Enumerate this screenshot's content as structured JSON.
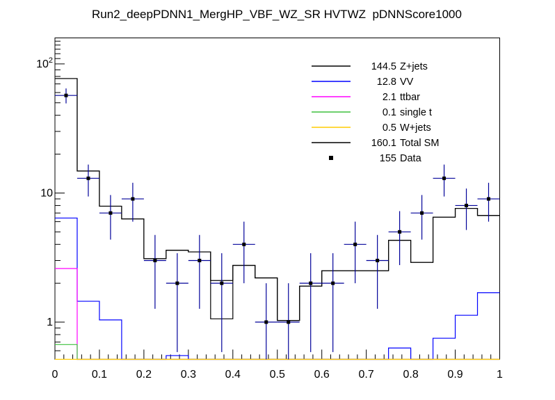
{
  "title": "Run2_deepPDNN1_MergHP_VBF_WZ_SR HVTWZ  pDNNScore1000",
  "legend": {
    "entries": [
      {
        "value": "144.5",
        "label": "Z+jets",
        "color": "#000000",
        "type": "line"
      },
      {
        "value": "12.8",
        "label": "VV",
        "color": "#0000ff",
        "type": "line"
      },
      {
        "value": "2.1",
        "label": "ttbar",
        "color": "#ff00ff",
        "type": "line"
      },
      {
        "value": "0.1",
        "label": "single t",
        "color": "#3dc13d",
        "type": "line"
      },
      {
        "value": "0.5",
        "label": "W+jets",
        "color": "#ffcc00",
        "type": "line"
      },
      {
        "value": "160.1",
        "label": "Total SM",
        "color": "#000000",
        "type": "line"
      },
      {
        "value": "155",
        "label": "Data",
        "color": "#000000",
        "type": "marker"
      }
    ]
  },
  "axes": {
    "x": {
      "range": [
        0,
        1
      ],
      "ticks": [
        {
          "v": 0.0,
          "label": "0"
        },
        {
          "v": 0.1,
          "label": "0.1"
        },
        {
          "v": 0.2,
          "label": "0.2"
        },
        {
          "v": 0.3,
          "label": "0.3"
        },
        {
          "v": 0.4,
          "label": "0.4"
        },
        {
          "v": 0.5,
          "label": "0.5"
        },
        {
          "v": 0.6,
          "label": "0.6"
        },
        {
          "v": 0.7,
          "label": "0.7"
        },
        {
          "v": 0.8,
          "label": "0.8"
        },
        {
          "v": 0.9,
          "label": "0.9"
        },
        {
          "v": 1.0,
          "label": "1"
        }
      ],
      "minor_step": 0.02
    },
    "y": {
      "scale": "log",
      "major_ticks": [
        {
          "v": 1,
          "label": "1"
        },
        {
          "v": 10,
          "label": "10"
        },
        {
          "v": 100,
          "label": "10",
          "exp": "2"
        }
      ],
      "minor_ticks": [
        0.6,
        0.7,
        0.8,
        0.9,
        2,
        3,
        4,
        5,
        6,
        7,
        8,
        9,
        20,
        30,
        40,
        50,
        60,
        70,
        80,
        90,
        110,
        120,
        130,
        140,
        150
      ]
    }
  },
  "chart_data": {
    "type": "histogram-step",
    "yscale": "log",
    "ylim": [
      0.515,
      159
    ],
    "bin_edges": [
      0,
      0.05,
      0.1,
      0.15,
      0.2,
      0.25,
      0.3,
      0.35,
      0.4,
      0.45,
      0.5,
      0.55,
      0.6,
      0.65,
      0.7,
      0.75,
      0.8,
      0.85,
      0.9,
      0.95,
      1.0
    ],
    "series": [
      {
        "name": "Z+jets",
        "color": "#000000",
        "values": [
          77,
          14.8,
          7.9,
          6.3,
          3.1,
          3.6,
          3.5,
          1.06,
          2.75,
          2.2,
          1.03,
          1.9,
          2.5,
          2.5,
          2.5,
          4.3,
          2.9,
          6.5,
          7.6,
          6.7
        ]
      },
      {
        "name": "VV",
        "color": "#0000ff",
        "values": [
          6.4,
          1.45,
          1.04,
          0,
          0,
          0.55,
          0,
          0,
          0,
          0,
          0,
          0,
          0,
          0,
          0,
          0.63,
          0,
          0.75,
          1.13,
          1.69
        ]
      },
      {
        "name": "ttbar",
        "color": "#ff00ff",
        "values": [
          2.6,
          0,
          0,
          0,
          0,
          0,
          0,
          0,
          0,
          0,
          0,
          0,
          0,
          0,
          0,
          0,
          0,
          0,
          0,
          0
        ]
      },
      {
        "name": "single t",
        "color": "#3dc13d",
        "values": [
          0.67,
          0,
          0,
          0,
          0,
          0,
          0,
          0,
          0,
          0,
          0,
          0,
          0,
          0,
          0,
          0,
          0,
          0,
          0,
          0
        ]
      },
      {
        "name": "Total SM",
        "color": "#000000",
        "values": [
          77,
          14.8,
          7.9,
          6.3,
          3.1,
          3.6,
          3.5,
          2.1,
          2.75,
          2.2,
          1.03,
          1.9,
          2.5,
          2.5,
          2.5,
          4.3,
          2.9,
          6.5,
          7.6,
          6.7
        ]
      },
      {
        "name": "W+jets",
        "color": "#ffcc00",
        "values": [
          0.03,
          0.03,
          0.03,
          0.03,
          0.03,
          0.03,
          0.03,
          0.03,
          0.03,
          0.03,
          0.03,
          0.03,
          0.03,
          0.03,
          0.03,
          0.03,
          0.03,
          0.03,
          0.03,
          0.03
        ]
      }
    ],
    "data_points": {
      "name": "Data",
      "marker": "square",
      "marker_color": "#000000",
      "error_color": "#000099",
      "error_model": "sqrt",
      "x": [
        0.025,
        0.075,
        0.125,
        0.175,
        0.225,
        0.275,
        0.325,
        0.375,
        0.425,
        0.475,
        0.525,
        0.575,
        0.625,
        0.675,
        0.725,
        0.775,
        0.825,
        0.875,
        0.925,
        0.975
      ],
      "y": [
        57,
        13,
        7,
        9,
        3,
        2,
        3,
        2,
        4,
        1,
        1,
        2,
        2,
        4,
        3,
        5,
        7,
        13,
        8,
        9
      ]
    }
  }
}
